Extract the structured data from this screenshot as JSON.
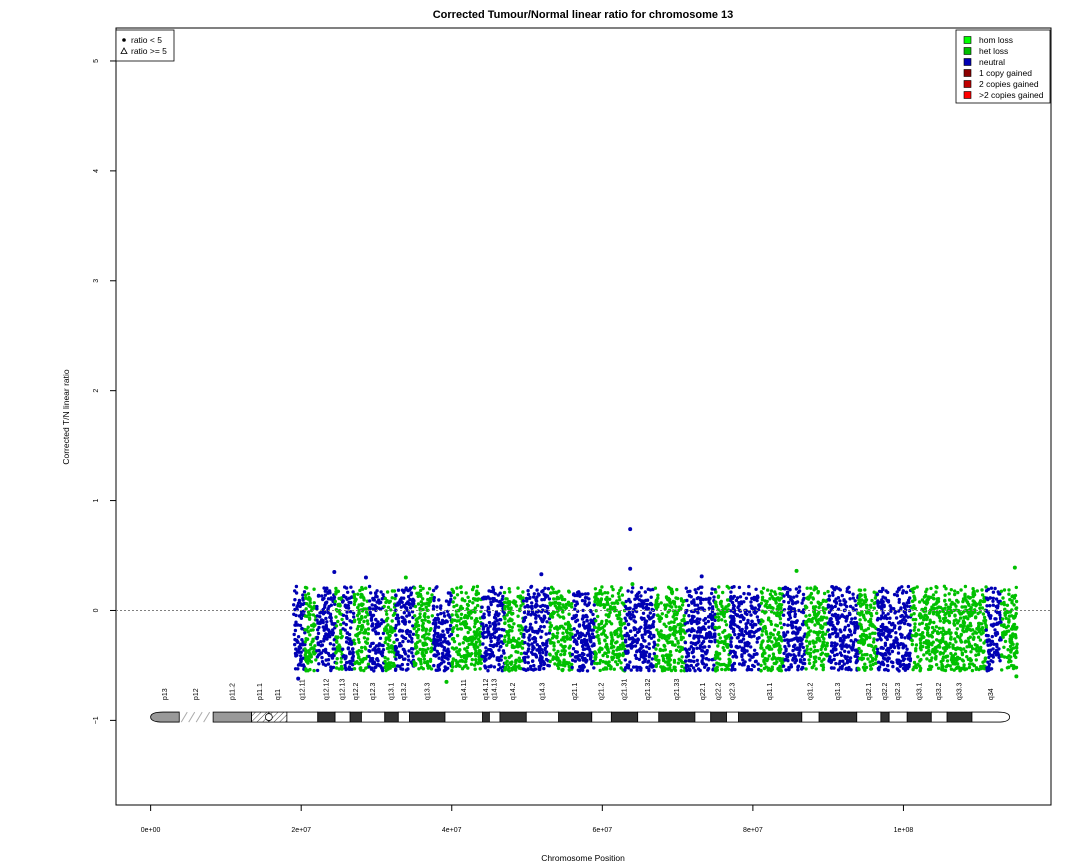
{
  "chart_data": {
    "type": "scatter",
    "title": "Corrected Tumour/Normal linear ratio for chromosome  13",
    "xlabel": "Chromosome Position",
    "ylabel": "Corrected T/N linear ratio",
    "xlim": [
      -4600000,
      119600000
    ],
    "ylim": [
      -1.77,
      5.3
    ],
    "x_ticks": [
      {
        "value": 0,
        "label": "0e+00"
      },
      {
        "value": 20000000,
        "label": "2e+07"
      },
      {
        "value": 40000000,
        "label": "4e+07"
      },
      {
        "value": 60000000,
        "label": "6e+07"
      },
      {
        "value": 80000000,
        "label": "8e+07"
      },
      {
        "value": 100000000,
        "label": "1e+08"
      }
    ],
    "y_ticks": [
      {
        "value": -1,
        "label": "−1"
      },
      {
        "value": 0,
        "label": "0"
      },
      {
        "value": 1,
        "label": "1"
      },
      {
        "value": 2,
        "label": "2"
      },
      {
        "value": 3,
        "label": "3"
      },
      {
        "value": 4,
        "label": "4"
      },
      {
        "value": 5,
        "label": "5"
      }
    ],
    "reference_line": {
      "y": 0,
      "style": "dotted",
      "color": "#808080"
    },
    "grid": false,
    "data_x_range": [
      19000000,
      115100000
    ],
    "data_band": {
      "low": -0.55,
      "high": 0.12
    },
    "color_segments": [
      {
        "start": 19000000,
        "end": 20500000,
        "class": "neutral"
      },
      {
        "start": 20500000,
        "end": 22000000,
        "class": "het loss"
      },
      {
        "start": 22000000,
        "end": 24500000,
        "class": "neutral"
      },
      {
        "start": 24500000,
        "end": 25500000,
        "class": "het loss"
      },
      {
        "start": 25500000,
        "end": 27000000,
        "class": "neutral"
      },
      {
        "start": 27000000,
        "end": 29000000,
        "class": "het loss"
      },
      {
        "start": 29000000,
        "end": 31000000,
        "class": "neutral"
      },
      {
        "start": 31000000,
        "end": 32500000,
        "class": "het loss"
      },
      {
        "start": 32500000,
        "end": 35000000,
        "class": "neutral"
      },
      {
        "start": 35000000,
        "end": 37500000,
        "class": "het loss"
      },
      {
        "start": 37500000,
        "end": 40000000,
        "class": "neutral"
      },
      {
        "start": 40000000,
        "end": 44000000,
        "class": "het loss"
      },
      {
        "start": 44000000,
        "end": 47000000,
        "class": "neutral"
      },
      {
        "start": 47000000,
        "end": 49500000,
        "class": "het loss"
      },
      {
        "start": 49500000,
        "end": 53000000,
        "class": "neutral"
      },
      {
        "start": 53000000,
        "end": 56000000,
        "class": "het loss"
      },
      {
        "start": 56000000,
        "end": 59000000,
        "class": "neutral"
      },
      {
        "start": 59000000,
        "end": 63000000,
        "class": "het loss"
      },
      {
        "start": 63000000,
        "end": 67000000,
        "class": "neutral"
      },
      {
        "start": 67000000,
        "end": 71000000,
        "class": "het loss"
      },
      {
        "start": 71000000,
        "end": 75000000,
        "class": "neutral"
      },
      {
        "start": 75000000,
        "end": 77000000,
        "class": "het loss"
      },
      {
        "start": 77000000,
        "end": 81000000,
        "class": "neutral"
      },
      {
        "start": 81000000,
        "end": 84000000,
        "class": "het loss"
      },
      {
        "start": 84000000,
        "end": 87000000,
        "class": "neutral"
      },
      {
        "start": 87000000,
        "end": 90000000,
        "class": "het loss"
      },
      {
        "start": 90000000,
        "end": 94000000,
        "class": "neutral"
      },
      {
        "start": 94000000,
        "end": 96500000,
        "class": "het loss"
      },
      {
        "start": 96500000,
        "end": 101000000,
        "class": "neutral"
      },
      {
        "start": 101000000,
        "end": 111000000,
        "class": "het loss"
      },
      {
        "start": 111000000,
        "end": 113000000,
        "class": "neutral"
      },
      {
        "start": 113000000,
        "end": 115100000,
        "class": "het loss"
      }
    ],
    "highlight_points": [
      {
        "x": 63700000,
        "y": 0.74,
        "class": "neutral"
      },
      {
        "x": 63700000,
        "y": 0.38,
        "class": "neutral"
      },
      {
        "x": 85800000,
        "y": 0.36,
        "class": "het loss"
      },
      {
        "x": 24400000,
        "y": 0.35,
        "class": "neutral"
      },
      {
        "x": 51900000,
        "y": 0.33,
        "class": "neutral"
      },
      {
        "x": 73200000,
        "y": 0.31,
        "class": "neutral"
      },
      {
        "x": 114800000,
        "y": 0.39,
        "class": "het loss"
      },
      {
        "x": 28600000,
        "y": 0.3,
        "class": "neutral"
      },
      {
        "x": 33900000,
        "y": 0.3,
        "class": "het loss"
      },
      {
        "x": 64000000,
        "y": 0.24,
        "class": "het loss"
      },
      {
        "x": 19600000,
        "y": -0.62,
        "class": "neutral"
      },
      {
        "x": 39300000,
        "y": -0.65,
        "class": "het loss"
      },
      {
        "x": 115000000,
        "y": -0.6,
        "class": "het loss"
      }
    ],
    "legend_point_types": [
      {
        "label": "ratio < 5",
        "symbol": "dot"
      },
      {
        "label": "ratio >= 5",
        "symbol": "triangle"
      }
    ],
    "legend_state_colors": [
      {
        "label": "hom loss",
        "color": "#00ff00"
      },
      {
        "label": "het loss",
        "color": "#00c000"
      },
      {
        "label": "neutral",
        "color": "#0000b4"
      },
      {
        "label": "1 copy gained",
        "color": "#8b0000"
      },
      {
        "label": "2 copies gained",
        "color": "#c00000"
      },
      {
        "label": ">2 copies gained",
        "color": "#ff0000"
      }
    ],
    "colors": {
      "het loss": "#00c000",
      "neutral": "#0000b4"
    },
    "ideogram": {
      "y": -0.97,
      "bands": [
        {
          "name": "p13",
          "start": 0,
          "end": 3800000,
          "stain": "gvar"
        },
        {
          "name": "p12",
          "start": 3800000,
          "end": 8300000,
          "stain": "stalk"
        },
        {
          "name": "p11.2",
          "start": 8300000,
          "end": 13400000,
          "stain": "gvar"
        },
        {
          "name": "p11.1",
          "start": 13400000,
          "end": 15700000,
          "stain": "acen"
        },
        {
          "name": "q11",
          "start": 15700000,
          "end": 18100000,
          "stain": "acen"
        },
        {
          "name": "q12.11",
          "start": 18100000,
          "end": 22200000,
          "stain": "gneg"
        },
        {
          "name": "q12.12",
          "start": 22200000,
          "end": 24500000,
          "stain": "gpos"
        },
        {
          "name": "q12.13",
          "start": 24500000,
          "end": 26500000,
          "stain": "gneg"
        },
        {
          "name": "q12.2",
          "start": 26500000,
          "end": 28000000,
          "stain": "gpos"
        },
        {
          "name": "q12.3",
          "start": 28000000,
          "end": 31100000,
          "stain": "gneg"
        },
        {
          "name": "q13.1",
          "start": 31100000,
          "end": 32900000,
          "stain": "gpos"
        },
        {
          "name": "q13.2",
          "start": 32900000,
          "end": 34400000,
          "stain": "gneg"
        },
        {
          "name": "q13.3",
          "start": 34400000,
          "end": 39100000,
          "stain": "gpos"
        },
        {
          "name": "q14.11",
          "start": 39100000,
          "end": 44100000,
          "stain": "gneg"
        },
        {
          "name": "q14.12",
          "start": 44100000,
          "end": 45000000,
          "stain": "gpos"
        },
        {
          "name": "q14.13",
          "start": 45000000,
          "end": 46400000,
          "stain": "gneg"
        },
        {
          "name": "q14.2",
          "start": 46400000,
          "end": 49900000,
          "stain": "gpos"
        },
        {
          "name": "q14.3",
          "start": 49900000,
          "end": 54200000,
          "stain": "gneg"
        },
        {
          "name": "q21.1",
          "start": 54200000,
          "end": 58600000,
          "stain": "gpos"
        },
        {
          "name": "q21.2",
          "start": 58600000,
          "end": 61200000,
          "stain": "gneg"
        },
        {
          "name": "q21.31",
          "start": 61200000,
          "end": 64700000,
          "stain": "gpos"
        },
        {
          "name": "q21.32",
          "start": 64700000,
          "end": 67500000,
          "stain": "gneg"
        },
        {
          "name": "q21.33",
          "start": 67500000,
          "end": 72300000,
          "stain": "gpos"
        },
        {
          "name": "q22.1",
          "start": 72300000,
          "end": 74400000,
          "stain": "gneg"
        },
        {
          "name": "q22.2",
          "start": 74400000,
          "end": 76500000,
          "stain": "gpos"
        },
        {
          "name": "q22.3",
          "start": 76500000,
          "end": 78100000,
          "stain": "gneg"
        },
        {
          "name": "q31.1",
          "start": 78100000,
          "end": 86500000,
          "stain": "gpos"
        },
        {
          "name": "q31.2",
          "start": 86500000,
          "end": 88800000,
          "stain": "gneg"
        },
        {
          "name": "q31.3",
          "start": 88800000,
          "end": 93800000,
          "stain": "gpos"
        },
        {
          "name": "q32.1",
          "start": 93800000,
          "end": 97000000,
          "stain": "gneg"
        },
        {
          "name": "q32.2",
          "start": 97000000,
          "end": 98100000,
          "stain": "gpos"
        },
        {
          "name": "q32.3",
          "start": 98100000,
          "end": 100500000,
          "stain": "gneg"
        },
        {
          "name": "q33.1",
          "start": 100500000,
          "end": 103700000,
          "stain": "gpos"
        },
        {
          "name": "q33.2",
          "start": 103700000,
          "end": 105800000,
          "stain": "gneg"
        },
        {
          "name": "q33.3",
          "start": 105800000,
          "end": 109100000,
          "stain": "gpos"
        },
        {
          "name": "q34",
          "start": 109100000,
          "end": 114100000,
          "stain": "gneg"
        }
      ]
    }
  }
}
